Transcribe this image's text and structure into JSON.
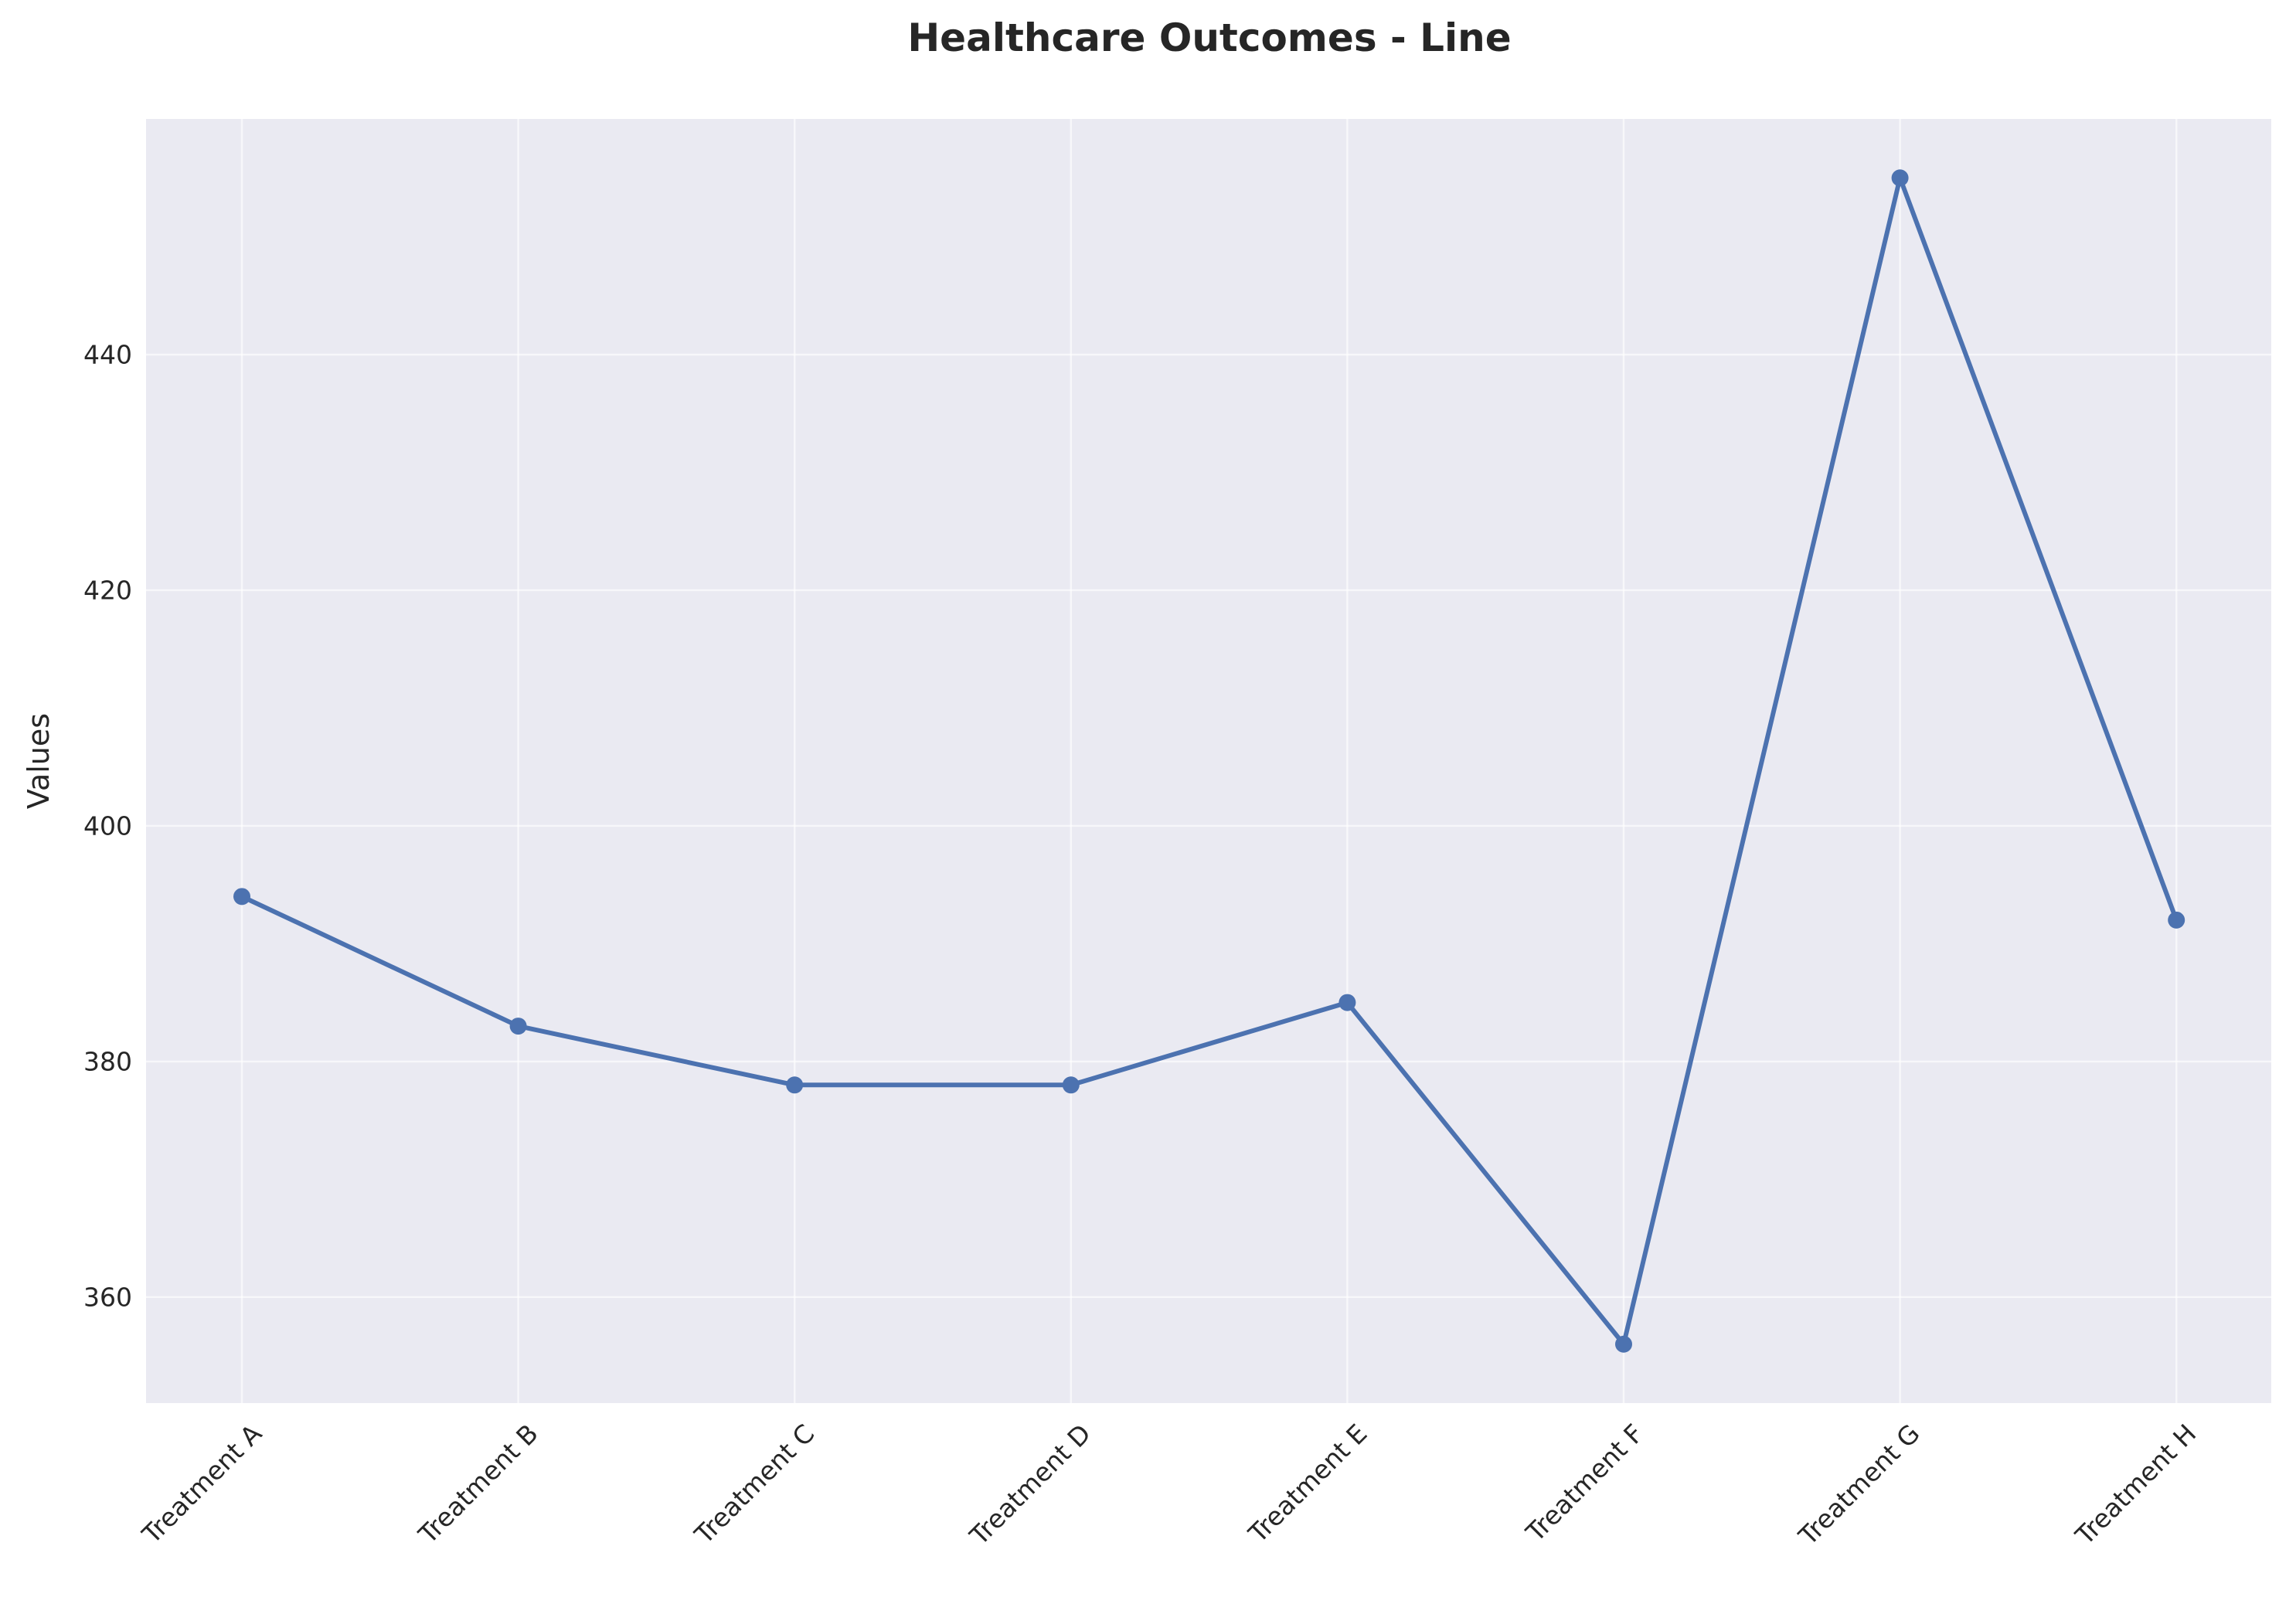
{
  "chart_data": {
    "type": "line",
    "title": "Healthcare Outcomes - Line",
    "xlabel": "",
    "ylabel": "Values",
    "categories": [
      "Treatment A",
      "Treatment B",
      "Treatment C",
      "Treatment D",
      "Treatment E",
      "Treatment F",
      "Treatment G",
      "Treatment H"
    ],
    "series": [
      {
        "values": [
          394,
          383,
          378,
          378,
          385,
          356,
          455,
          392
        ]
      }
    ],
    "ylim": [
      351,
      460
    ],
    "yticks": [
      360,
      380,
      400,
      420,
      440
    ],
    "grid": true,
    "legend": "none",
    "colors": {
      "line": "#4c72b0",
      "plot_background": "#eaeaf2",
      "grid": "#ffffff",
      "text": "#262626"
    }
  }
}
